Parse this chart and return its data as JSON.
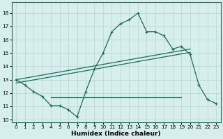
{
  "xlabel": "Humidex (Indice chaleur)",
  "x_ticks": [
    0,
    1,
    2,
    3,
    4,
    5,
    6,
    7,
    8,
    9,
    10,
    11,
    12,
    13,
    14,
    15,
    16,
    17,
    18,
    19,
    20,
    21,
    22,
    23
  ],
  "ylim": [
    9.8,
    18.8
  ],
  "xlim": [
    -0.5,
    23.5
  ],
  "yticks": [
    10,
    11,
    12,
    13,
    14,
    15,
    16,
    17,
    18
  ],
  "bg_color": "#d6efed",
  "grid_color": "#c0d8d5",
  "line_color": "#1a6b5a",
  "main_line": {
    "x": [
      0,
      1,
      2,
      3,
      4,
      5,
      6,
      7,
      8,
      9,
      10,
      11,
      12,
      13,
      14,
      15,
      16,
      17,
      18,
      19,
      20,
      21,
      22,
      23
    ],
    "y": [
      13.0,
      12.6,
      12.1,
      11.75,
      11.05,
      11.05,
      10.75,
      10.2,
      12.1,
      13.8,
      15.0,
      16.6,
      17.2,
      17.5,
      18.0,
      16.6,
      16.6,
      16.3,
      15.3,
      15.5,
      14.9,
      12.6,
      11.5,
      11.2
    ]
  },
  "flat_line": {
    "x": [
      4,
      19
    ],
    "y": [
      11.7,
      11.7
    ]
  },
  "trend1": {
    "x": [
      0,
      20
    ],
    "y": [
      13.0,
      15.3
    ]
  },
  "trend2": {
    "x": [
      0,
      20
    ],
    "y": [
      12.75,
      15.05
    ]
  }
}
